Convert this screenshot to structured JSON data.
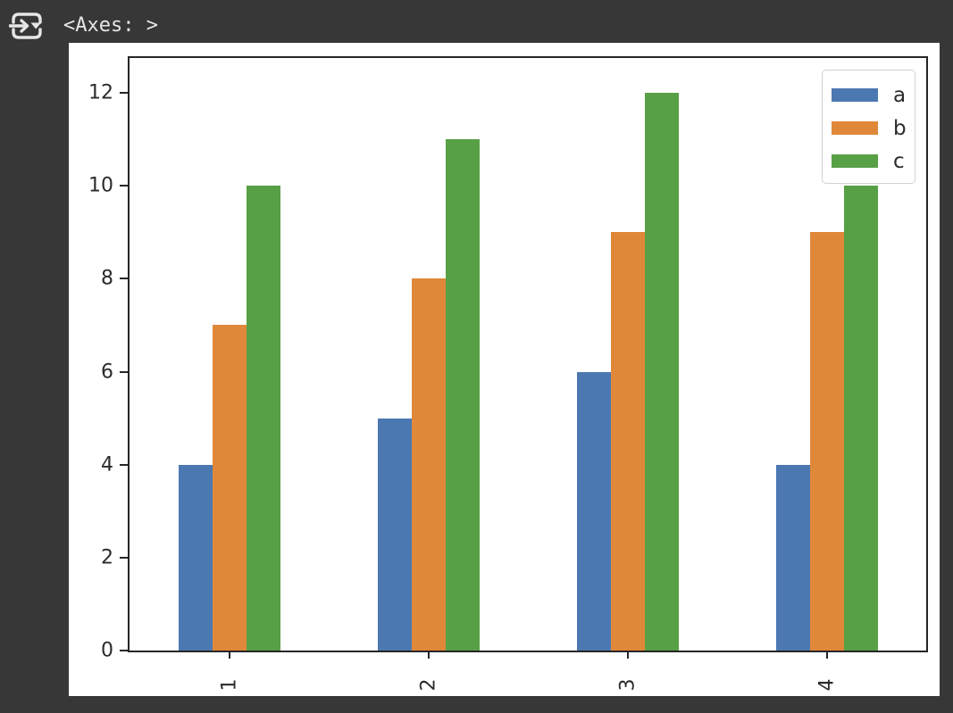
{
  "theme": {
    "window_background": "#373737",
    "figure_background": "#ffffff",
    "axis_color": "#262626",
    "tick_label_color": "#2b2b2b",
    "icon_color": "#e6e6e6",
    "legend_border_color": "#d2d2d2"
  },
  "output_cell": {
    "mime_button_icon": "output-mime-selector-icon",
    "repr_text": "<Axes: >"
  },
  "chart_data": {
    "type": "bar",
    "title": "",
    "xlabel": "",
    "ylabel": "",
    "categories": [
      "1",
      "2",
      "3",
      "4"
    ],
    "series": [
      {
        "name": "a",
        "color": "#4C78B1",
        "values": [
          4,
          5,
          6,
          4
        ]
      },
      {
        "name": "b",
        "color": "#E0883A",
        "values": [
          7,
          8,
          9,
          9
        ]
      },
      {
        "name": "c",
        "color": "#57A045",
        "values": [
          10,
          11,
          12,
          10
        ]
      }
    ],
    "ylim": [
      0,
      12.75
    ],
    "yticks": [
      0,
      2,
      4,
      6,
      8,
      10,
      12
    ],
    "x_tick_rotation": 90,
    "grid": false,
    "legend_position": "upper right",
    "legend_labels": [
      "a",
      "b",
      "c"
    ]
  }
}
